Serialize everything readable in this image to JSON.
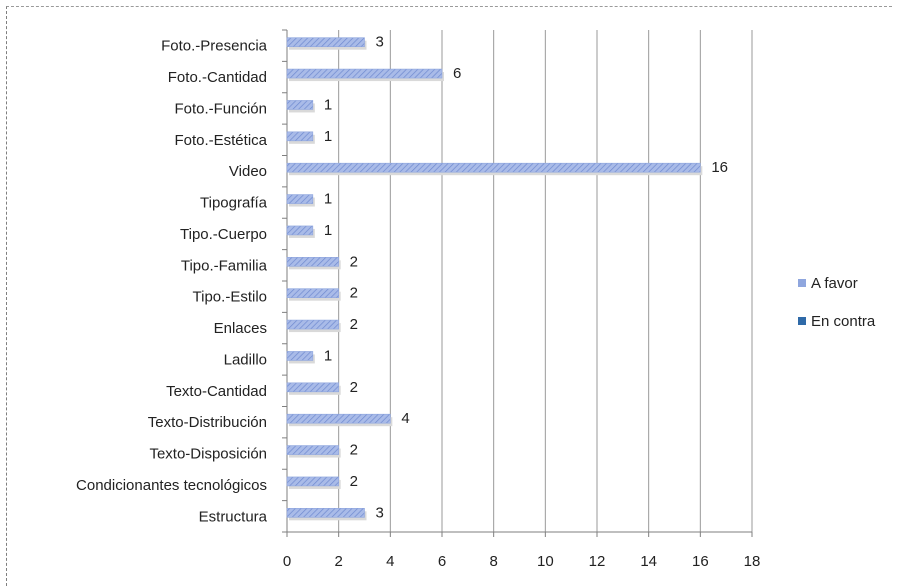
{
  "chart_data": {
    "type": "bar",
    "orientation": "horizontal",
    "title": "",
    "xlabel": "",
    "ylabel": "",
    "categories": [
      "Foto.-Presencia",
      "Foto.-Cantidad",
      "Foto.-Función",
      "Foto.-Estética",
      "Video",
      "Tipografía",
      "Tipo.-Cuerpo",
      "Tipo.-Familia",
      "Tipo.-Estilo",
      "Enlaces",
      "Ladillo",
      "Texto-Cantidad",
      "Texto-Distribución",
      "Texto-Disposición",
      "Condicionantes tecnológicos",
      "Estructura"
    ],
    "series": [
      {
        "name": "A favor",
        "values": [
          3,
          6,
          1,
          1,
          16,
          1,
          1,
          2,
          2,
          2,
          1,
          2,
          4,
          2,
          2,
          3
        ],
        "color": "#8fa6de"
      },
      {
        "name": "En contra",
        "values": [
          0,
          0,
          0,
          0,
          0,
          0,
          0,
          0,
          0,
          0,
          0,
          0,
          0,
          0,
          0,
          0
        ],
        "color": "#2f6aa8"
      }
    ],
    "xlim": [
      0,
      18
    ],
    "xticks": [
      "0",
      "2",
      "4",
      "6",
      "8",
      "10",
      "12",
      "14",
      "16",
      "18"
    ],
    "grid": "vertical",
    "legend": "right"
  }
}
